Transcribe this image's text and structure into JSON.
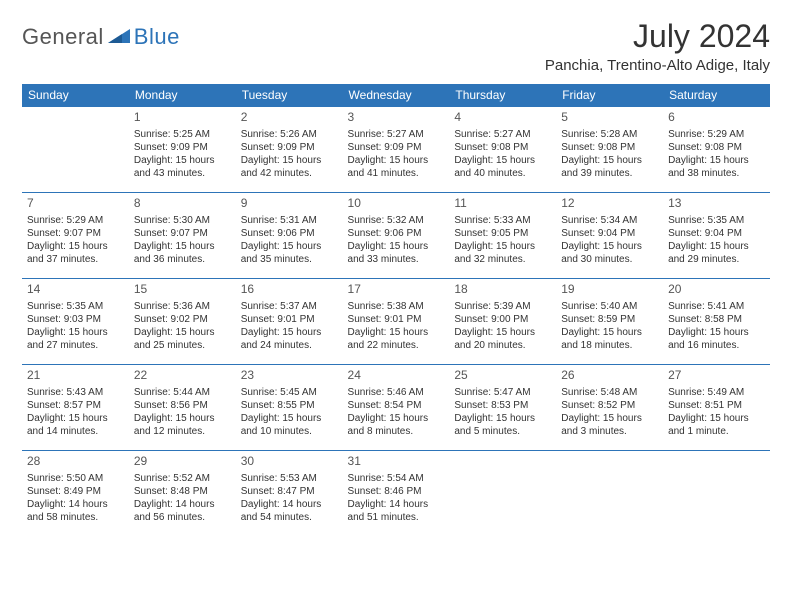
{
  "logo": {
    "part1": "General",
    "part2": "Blue"
  },
  "title": "July 2024",
  "location": "Panchia, Trentino-Alto Adige, Italy",
  "colors": {
    "header_bg": "#2d74b8",
    "header_text": "#ffffff",
    "border": "#2d74b8",
    "text": "#333333",
    "logo_gray": "#555555",
    "logo_blue": "#2d74b8",
    "background": "#ffffff"
  },
  "day_headers": [
    "Sunday",
    "Monday",
    "Tuesday",
    "Wednesday",
    "Thursday",
    "Friday",
    "Saturday"
  ],
  "weeks": [
    [
      null,
      {
        "n": "1",
        "sr": "Sunrise: 5:25 AM",
        "ss": "Sunset: 9:09 PM",
        "d1": "Daylight: 15 hours",
        "d2": "and 43 minutes."
      },
      {
        "n": "2",
        "sr": "Sunrise: 5:26 AM",
        "ss": "Sunset: 9:09 PM",
        "d1": "Daylight: 15 hours",
        "d2": "and 42 minutes."
      },
      {
        "n": "3",
        "sr": "Sunrise: 5:27 AM",
        "ss": "Sunset: 9:09 PM",
        "d1": "Daylight: 15 hours",
        "d2": "and 41 minutes."
      },
      {
        "n": "4",
        "sr": "Sunrise: 5:27 AM",
        "ss": "Sunset: 9:08 PM",
        "d1": "Daylight: 15 hours",
        "d2": "and 40 minutes."
      },
      {
        "n": "5",
        "sr": "Sunrise: 5:28 AM",
        "ss": "Sunset: 9:08 PM",
        "d1": "Daylight: 15 hours",
        "d2": "and 39 minutes."
      },
      {
        "n": "6",
        "sr": "Sunrise: 5:29 AM",
        "ss": "Sunset: 9:08 PM",
        "d1": "Daylight: 15 hours",
        "d2": "and 38 minutes."
      }
    ],
    [
      {
        "n": "7",
        "sr": "Sunrise: 5:29 AM",
        "ss": "Sunset: 9:07 PM",
        "d1": "Daylight: 15 hours",
        "d2": "and 37 minutes."
      },
      {
        "n": "8",
        "sr": "Sunrise: 5:30 AM",
        "ss": "Sunset: 9:07 PM",
        "d1": "Daylight: 15 hours",
        "d2": "and 36 minutes."
      },
      {
        "n": "9",
        "sr": "Sunrise: 5:31 AM",
        "ss": "Sunset: 9:06 PM",
        "d1": "Daylight: 15 hours",
        "d2": "and 35 minutes."
      },
      {
        "n": "10",
        "sr": "Sunrise: 5:32 AM",
        "ss": "Sunset: 9:06 PM",
        "d1": "Daylight: 15 hours",
        "d2": "and 33 minutes."
      },
      {
        "n": "11",
        "sr": "Sunrise: 5:33 AM",
        "ss": "Sunset: 9:05 PM",
        "d1": "Daylight: 15 hours",
        "d2": "and 32 minutes."
      },
      {
        "n": "12",
        "sr": "Sunrise: 5:34 AM",
        "ss": "Sunset: 9:04 PM",
        "d1": "Daylight: 15 hours",
        "d2": "and 30 minutes."
      },
      {
        "n": "13",
        "sr": "Sunrise: 5:35 AM",
        "ss": "Sunset: 9:04 PM",
        "d1": "Daylight: 15 hours",
        "d2": "and 29 minutes."
      }
    ],
    [
      {
        "n": "14",
        "sr": "Sunrise: 5:35 AM",
        "ss": "Sunset: 9:03 PM",
        "d1": "Daylight: 15 hours",
        "d2": "and 27 minutes."
      },
      {
        "n": "15",
        "sr": "Sunrise: 5:36 AM",
        "ss": "Sunset: 9:02 PM",
        "d1": "Daylight: 15 hours",
        "d2": "and 25 minutes."
      },
      {
        "n": "16",
        "sr": "Sunrise: 5:37 AM",
        "ss": "Sunset: 9:01 PM",
        "d1": "Daylight: 15 hours",
        "d2": "and 24 minutes."
      },
      {
        "n": "17",
        "sr": "Sunrise: 5:38 AM",
        "ss": "Sunset: 9:01 PM",
        "d1": "Daylight: 15 hours",
        "d2": "and 22 minutes."
      },
      {
        "n": "18",
        "sr": "Sunrise: 5:39 AM",
        "ss": "Sunset: 9:00 PM",
        "d1": "Daylight: 15 hours",
        "d2": "and 20 minutes."
      },
      {
        "n": "19",
        "sr": "Sunrise: 5:40 AM",
        "ss": "Sunset: 8:59 PM",
        "d1": "Daylight: 15 hours",
        "d2": "and 18 minutes."
      },
      {
        "n": "20",
        "sr": "Sunrise: 5:41 AM",
        "ss": "Sunset: 8:58 PM",
        "d1": "Daylight: 15 hours",
        "d2": "and 16 minutes."
      }
    ],
    [
      {
        "n": "21",
        "sr": "Sunrise: 5:43 AM",
        "ss": "Sunset: 8:57 PM",
        "d1": "Daylight: 15 hours",
        "d2": "and 14 minutes."
      },
      {
        "n": "22",
        "sr": "Sunrise: 5:44 AM",
        "ss": "Sunset: 8:56 PM",
        "d1": "Daylight: 15 hours",
        "d2": "and 12 minutes."
      },
      {
        "n": "23",
        "sr": "Sunrise: 5:45 AM",
        "ss": "Sunset: 8:55 PM",
        "d1": "Daylight: 15 hours",
        "d2": "and 10 minutes."
      },
      {
        "n": "24",
        "sr": "Sunrise: 5:46 AM",
        "ss": "Sunset: 8:54 PM",
        "d1": "Daylight: 15 hours",
        "d2": "and 8 minutes."
      },
      {
        "n": "25",
        "sr": "Sunrise: 5:47 AM",
        "ss": "Sunset: 8:53 PM",
        "d1": "Daylight: 15 hours",
        "d2": "and 5 minutes."
      },
      {
        "n": "26",
        "sr": "Sunrise: 5:48 AM",
        "ss": "Sunset: 8:52 PM",
        "d1": "Daylight: 15 hours",
        "d2": "and 3 minutes."
      },
      {
        "n": "27",
        "sr": "Sunrise: 5:49 AM",
        "ss": "Sunset: 8:51 PM",
        "d1": "Daylight: 15 hours",
        "d2": "and 1 minute."
      }
    ],
    [
      {
        "n": "28",
        "sr": "Sunrise: 5:50 AM",
        "ss": "Sunset: 8:49 PM",
        "d1": "Daylight: 14 hours",
        "d2": "and 58 minutes."
      },
      {
        "n": "29",
        "sr": "Sunrise: 5:52 AM",
        "ss": "Sunset: 8:48 PM",
        "d1": "Daylight: 14 hours",
        "d2": "and 56 minutes."
      },
      {
        "n": "30",
        "sr": "Sunrise: 5:53 AM",
        "ss": "Sunset: 8:47 PM",
        "d1": "Daylight: 14 hours",
        "d2": "and 54 minutes."
      },
      {
        "n": "31",
        "sr": "Sunrise: 5:54 AM",
        "ss": "Sunset: 8:46 PM",
        "d1": "Daylight: 14 hours",
        "d2": "and 51 minutes."
      },
      null,
      null,
      null
    ]
  ]
}
